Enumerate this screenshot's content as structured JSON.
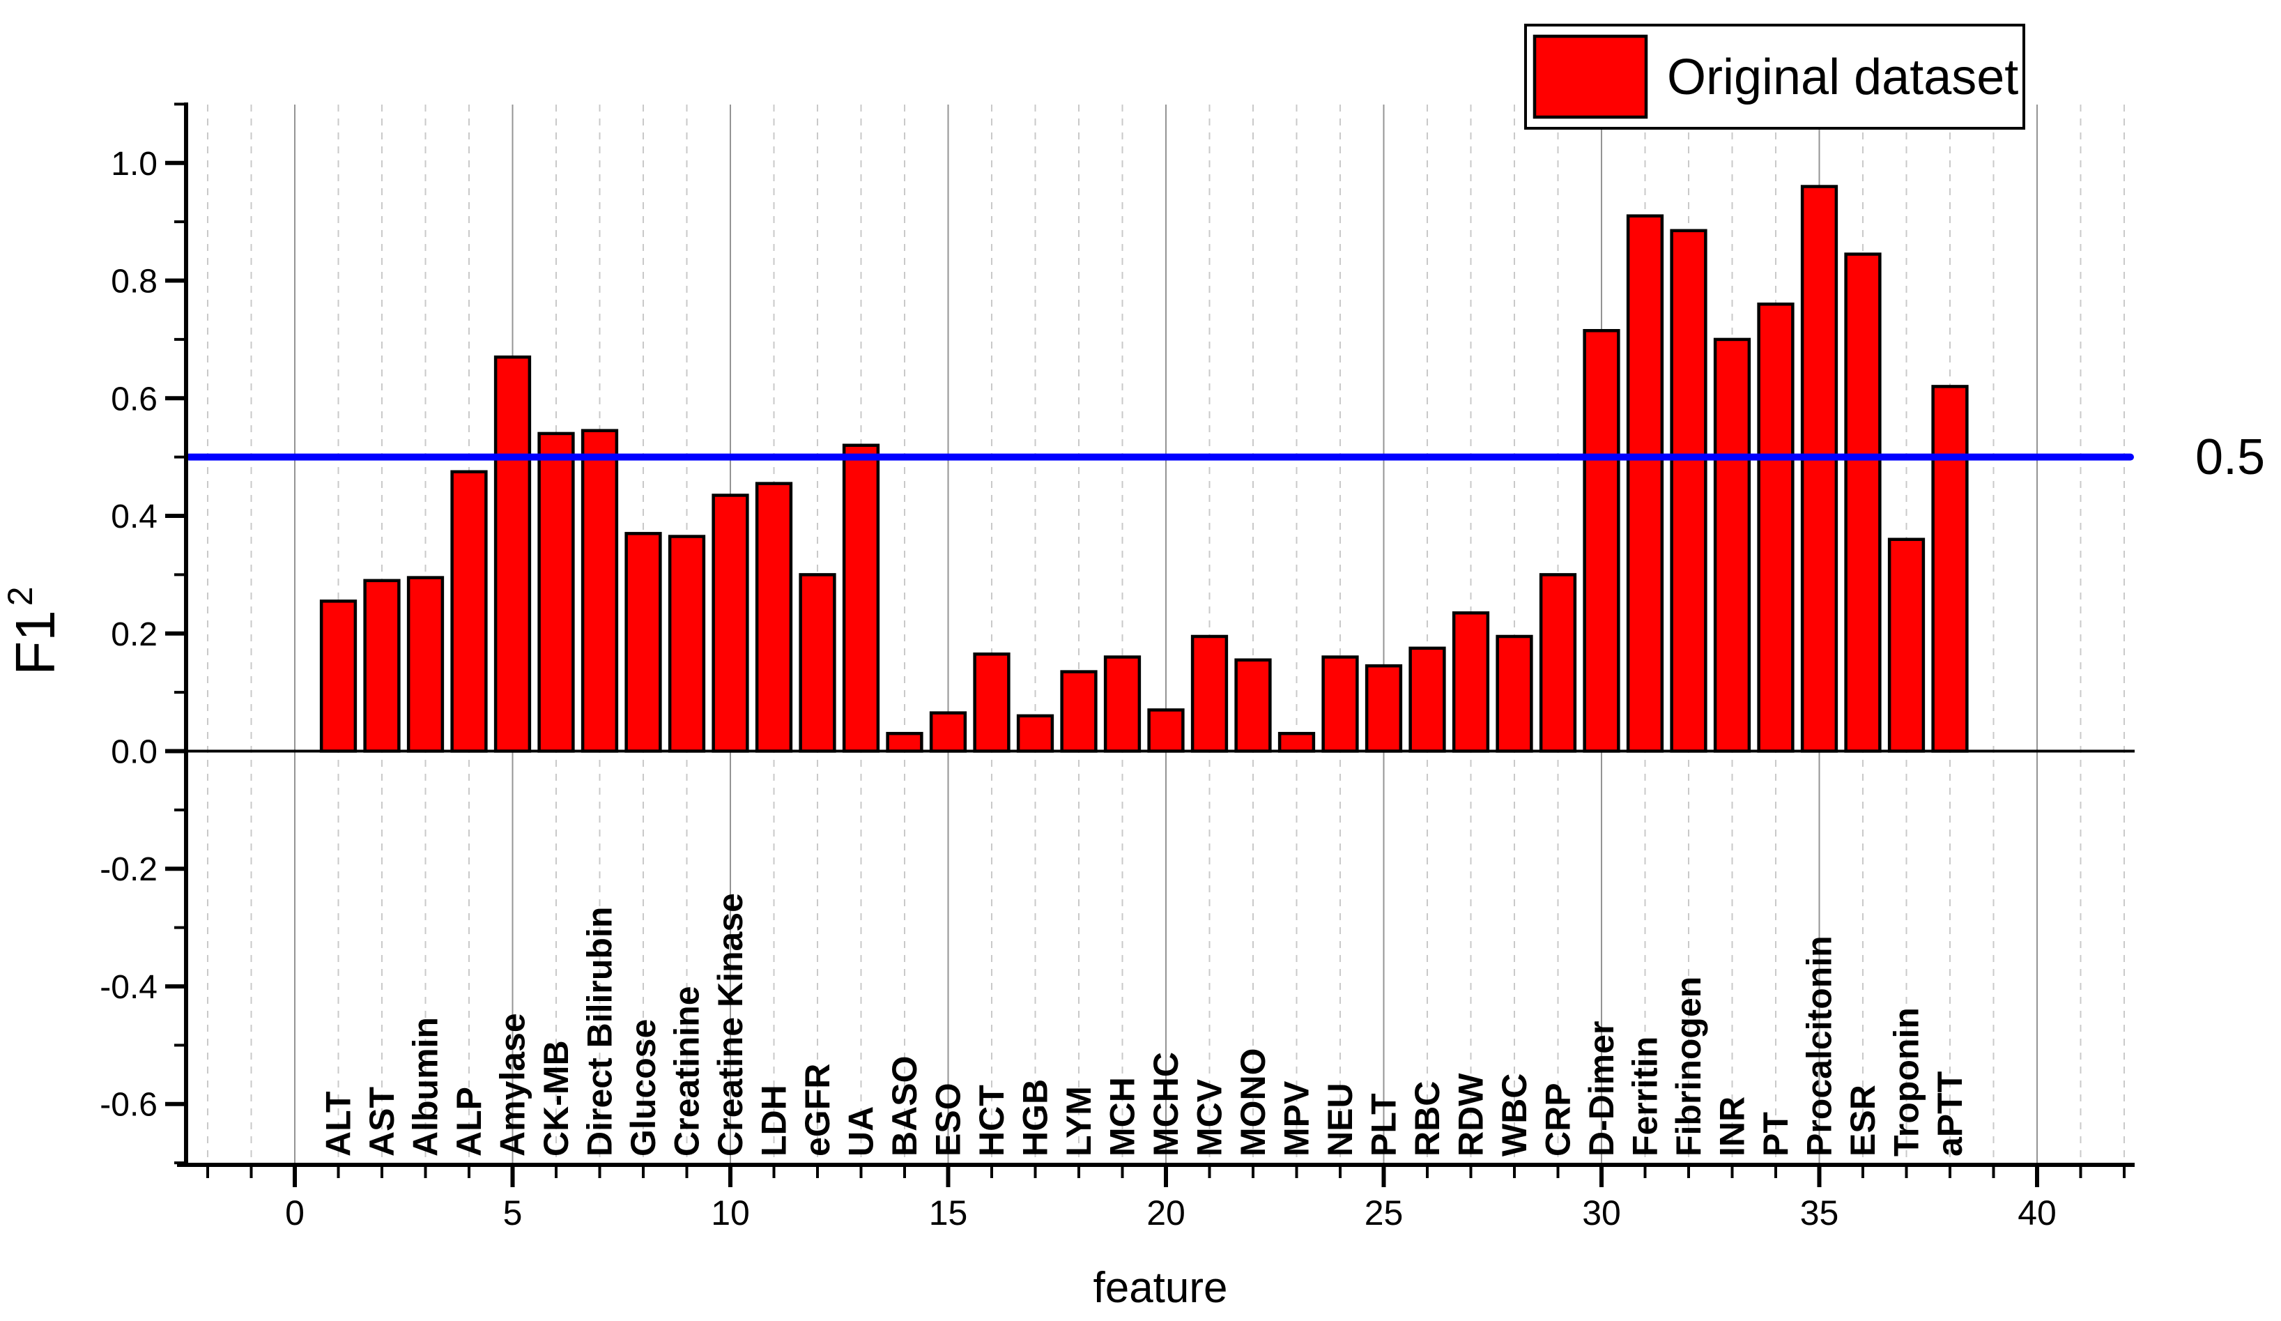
{
  "figure": {
    "background": "#ffffff",
    "legend": {
      "label": "Original dataset",
      "swatch_color": "#ff0000",
      "border_color": "#000000",
      "position": "top-right"
    },
    "axes": {
      "x_label": "feature",
      "y_label_base": "F1",
      "y_label_superscript": "2"
    }
  },
  "chart_data": {
    "type": "bar",
    "title": "",
    "xlabel": "feature",
    "ylabel": "F1^2",
    "categories": [
      "ALT",
      "AST",
      "Albumin",
      "ALP",
      "Amylase",
      "CK-MB",
      "Direct Bilirubin",
      "Glucose",
      "Creatinine",
      "Creatine Kinase",
      "LDH",
      "eGFR",
      "UA",
      "BASO",
      "ESO",
      "HCT",
      "HGB",
      "LYM",
      "MCH",
      "MCHC",
      "MCV",
      "MONO",
      "MPV",
      "NEU",
      "PLT",
      "RBC",
      "RDW",
      "WBC",
      "CRP",
      "D-Dimer",
      "Ferritin",
      "Fibrinogen",
      "INR",
      "PT",
      "Procalcitonin",
      "ESR",
      "Troponin",
      "aPTT"
    ],
    "series": [
      {
        "name": "Original dataset",
        "color": "#ff0000",
        "edge_color": "#000000",
        "values": [
          0.255,
          0.29,
          0.295,
          0.475,
          0.67,
          0.54,
          0.545,
          0.37,
          0.365,
          0.435,
          0.455,
          0.3,
          0.52,
          0.03,
          0.065,
          0.165,
          0.06,
          0.135,
          0.16,
          0.07,
          0.195,
          0.155,
          0.03,
          0.16,
          0.145,
          0.175,
          0.235,
          0.195,
          0.3,
          0.715,
          0.91,
          0.885,
          0.7,
          0.76,
          0.96,
          0.845,
          0.36,
          0.62
        ]
      }
    ],
    "bar_x_start": 1,
    "bar_width_units": 0.78,
    "reference_line": {
      "y": 0.5,
      "label": "0.5",
      "color": "#0000ff"
    },
    "xlim": [
      -2.5,
      42.3
    ],
    "ylim": [
      -0.7,
      1.1
    ],
    "x_major_ticks": [
      0,
      5,
      10,
      15,
      20,
      25,
      30,
      35,
      40
    ],
    "x_minor_tick_step": 1,
    "x_minor_tick_min": -2,
    "x_minor_tick_max": 42,
    "y_major_ticks": [
      -0.6,
      -0.4,
      -0.2,
      0.0,
      0.2,
      0.4,
      0.6,
      0.8,
      1.0
    ],
    "y_minor_tick_step": 0.1,
    "grid": {
      "horizontal": false,
      "vertical_minor_style": "dashed",
      "vertical_major_style": "solid",
      "vertical_major_every": 5,
      "minor_color": "#c9c9c9",
      "major_color": "#949494"
    },
    "legend_position": "top-right"
  }
}
